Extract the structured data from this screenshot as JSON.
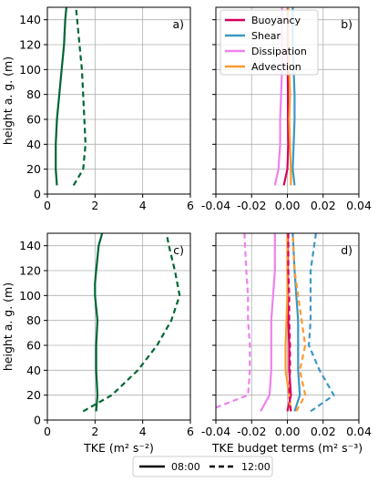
{
  "chart_data": [
    {
      "type": "line",
      "panel_label": "a)",
      "ylabel": "height a. g. (m)",
      "xlabel": "",
      "xlim": [
        0,
        6
      ],
      "ylim": [
        0,
        150
      ],
      "xticks": [
        "0",
        "2",
        "4",
        "6"
      ],
      "yticks": [
        "0",
        "20",
        "40",
        "60",
        "80",
        "100",
        "120",
        "140"
      ],
      "grid": true,
      "series": [
        {
          "variable": "TKE",
          "time": "08:00",
          "color": "#006633",
          "style": "solid",
          "x": [
            0.4,
            0.35,
            0.35,
            0.4,
            0.5,
            0.6,
            0.7,
            0.75,
            0.8
          ],
          "y": [
            7,
            20,
            40,
            60,
            80,
            100,
            120,
            140,
            150
          ]
        },
        {
          "variable": "TKE",
          "time": "12:00",
          "color": "#006633",
          "style": "dashed",
          "x": [
            1.1,
            1.5,
            1.6,
            1.55,
            1.5,
            1.45,
            1.35,
            1.25,
            1.2
          ],
          "y": [
            7,
            20,
            40,
            60,
            80,
            100,
            120,
            140,
            150
          ]
        }
      ]
    },
    {
      "type": "line",
      "panel_label": "b)",
      "ylabel": "",
      "xlabel": "",
      "xlim": [
        -0.04,
        0.04
      ],
      "ylim": [
        0,
        150
      ],
      "xticks": [
        "-0.04",
        "-0.02",
        "0.00",
        "0.02",
        "0.04"
      ],
      "yticks": [],
      "grid": true,
      "legend_position": "top-left",
      "series": [
        {
          "name": "Buoyancy",
          "time": "08:00",
          "color": "#d6005f",
          "style": "solid",
          "x": [
            -0.002,
            0.0,
            0.0005,
            0.0003,
            0.0003,
            0.0002,
            0.0002,
            0.0002
          ],
          "y": [
            7,
            20,
            40,
            60,
            80,
            100,
            120,
            150
          ]
        },
        {
          "name": "Shear",
          "time": "08:00",
          "color": "#3b98c6",
          "style": "solid",
          "x": [
            0.004,
            0.003,
            0.0035,
            0.004,
            0.004,
            0.0035,
            0.003,
            0.003
          ],
          "y": [
            7,
            20,
            40,
            60,
            80,
            100,
            120,
            150
          ]
        },
        {
          "name": "Dissipation",
          "time": "08:00",
          "color": "#ee82ee",
          "style": "solid",
          "x": [
            -0.007,
            -0.005,
            -0.004,
            -0.004,
            -0.0035,
            -0.003,
            -0.003,
            -0.003
          ],
          "y": [
            7,
            20,
            40,
            60,
            80,
            100,
            120,
            150
          ]
        },
        {
          "name": "Advection",
          "time": "08:00",
          "color": "#ff9a30",
          "style": "solid",
          "x": [
            0.002,
            0.002,
            0.0015,
            0.001,
            0.0015,
            0.001,
            0.0005,
            0.0005
          ],
          "y": [
            7,
            20,
            40,
            60,
            80,
            100,
            120,
            150
          ]
        }
      ],
      "legend": [
        "Buoyancy",
        "Shear",
        "Dissipation",
        "Advection"
      ]
    },
    {
      "type": "line",
      "panel_label": "c)",
      "ylabel": "height a. g. (m)",
      "xlabel": "TKE (m² s⁻²)",
      "xlim": [
        0,
        6
      ],
      "ylim": [
        0,
        150
      ],
      "xticks": [
        "0",
        "2",
        "4",
        "6"
      ],
      "yticks": [
        "0",
        "20",
        "40",
        "60",
        "80",
        "100",
        "120",
        "140"
      ],
      "grid": true,
      "series": [
        {
          "variable": "TKE",
          "time": "08:00",
          "color": "#006633",
          "style": "solid",
          "x": [
            2.05,
            2.1,
            2.05,
            2.05,
            2.1,
            2.0,
            2.0,
            2.05,
            2.15,
            2.3
          ],
          "y": [
            7,
            20,
            40,
            60,
            80,
            100,
            110,
            120,
            140,
            150
          ]
        },
        {
          "variable": "TKE",
          "time": "12:00",
          "color": "#006633",
          "style": "dashed",
          "x": [
            1.5,
            2.7,
            3.8,
            4.6,
            5.2,
            5.55,
            5.35,
            5.1,
            5.0
          ],
          "y": [
            7,
            20,
            40,
            60,
            80,
            100,
            120,
            140,
            150
          ]
        }
      ]
    },
    {
      "type": "line",
      "panel_label": "d)",
      "ylabel": "",
      "xlabel": "TKE budget terms (m² s⁻³)",
      "xlim": [
        -0.04,
        0.04
      ],
      "ylim": [
        0,
        150
      ],
      "xticks": [
        "-0.04",
        "-0.02",
        "0.00",
        "0.02",
        "0.04"
      ],
      "yticks": [],
      "grid": true,
      "series": [
        {
          "name": "Buoyancy",
          "time": "08:00",
          "color": "#d6005f",
          "style": "solid",
          "x": [
            0.0,
            0.002,
            0.001,
            0.001,
            0.0005,
            0.0003,
            0.0003,
            0.0003
          ],
          "y": [
            7,
            20,
            40,
            60,
            80,
            100,
            120,
            150
          ]
        },
        {
          "name": "Shear",
          "time": "08:00",
          "color": "#3b98c6",
          "style": "solid",
          "x": [
            0.004,
            0.007,
            0.006,
            0.006,
            0.006,
            0.005,
            0.004,
            0.003
          ],
          "y": [
            7,
            20,
            40,
            60,
            80,
            100,
            120,
            150
          ]
        },
        {
          "name": "Dissipation",
          "time": "08:00",
          "color": "#ee82ee",
          "style": "solid",
          "x": [
            -0.015,
            -0.01,
            -0.009,
            -0.009,
            -0.009,
            -0.008,
            -0.007,
            -0.007
          ],
          "y": [
            7,
            20,
            40,
            60,
            80,
            100,
            120,
            150
          ]
        },
        {
          "name": "Advection",
          "time": "08:00",
          "color": "#ff9a30",
          "style": "solid",
          "x": [
            0.002,
            0.001,
            -0.001,
            -0.001,
            -0.0005,
            0.0,
            0.0,
            0.0
          ],
          "y": [
            7,
            20,
            40,
            60,
            80,
            100,
            120,
            150
          ]
        },
        {
          "name": "Buoyancy",
          "time": "12:00",
          "color": "#d6005f",
          "style": "dashed",
          "x": [
            0.002,
            0.001,
            0.0015,
            0.0015,
            0.001,
            0.001,
            0.0005,
            0.0005
          ],
          "y": [
            7,
            20,
            40,
            60,
            80,
            100,
            120,
            150
          ]
        },
        {
          "name": "Shear",
          "time": "12:00",
          "color": "#3b98c6",
          "style": "dashed",
          "x": [
            0.013,
            0.026,
            0.018,
            0.012,
            0.013,
            0.013,
            0.013,
            0.016
          ],
          "y": [
            7,
            20,
            40,
            60,
            80,
            100,
            120,
            150
          ]
        },
        {
          "name": "Dissipation",
          "time": "12:00",
          "color": "#ee82ee",
          "style": "dashed",
          "x": [
            -0.04,
            -0.022,
            -0.021,
            -0.021,
            -0.022,
            -0.022,
            -0.023,
            -0.024
          ],
          "y": [
            10,
            20,
            40,
            60,
            80,
            100,
            120,
            150
          ]
        },
        {
          "name": "Advection",
          "time": "12:00",
          "color": "#ff9a30",
          "style": "dashed",
          "x": [
            0.005,
            0.01,
            0.007,
            0.01,
            0.008,
            0.006,
            0.004,
            0.003
          ],
          "y": [
            7,
            20,
            40,
            60,
            80,
            100,
            120,
            150
          ]
        }
      ]
    }
  ],
  "figure_legend": {
    "items": [
      {
        "label": "08:00",
        "style": "solid"
      },
      {
        "label": "12:00",
        "style": "dashed"
      }
    ]
  }
}
